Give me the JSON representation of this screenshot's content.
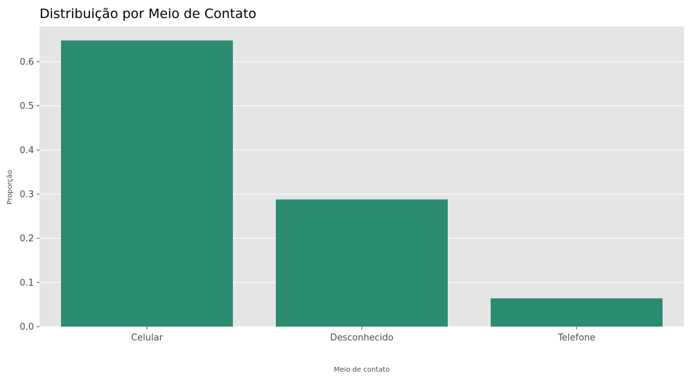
{
  "chart_data": {
    "type": "bar",
    "title": "Distribuição por Meio de Contato",
    "xlabel": "Meio de contato",
    "ylabel": "Proporção",
    "categories": [
      "Celular",
      "Desconhecido",
      "Telefone"
    ],
    "values": [
      0.648,
      0.288,
      0.064
    ],
    "ylim": [
      0,
      0.68
    ],
    "yticks": [
      0.0,
      0.1,
      0.2,
      0.3,
      0.4,
      0.5,
      0.6
    ],
    "ytick_labels": [
      "0.0",
      "0.1",
      "0.2",
      "0.3",
      "0.4",
      "0.5",
      "0.6"
    ],
    "grid": true,
    "legend": "none",
    "colors": {
      "bar": "#2b8c71",
      "plot_background": "#e5e5e5",
      "grid": "#ffffff"
    }
  }
}
